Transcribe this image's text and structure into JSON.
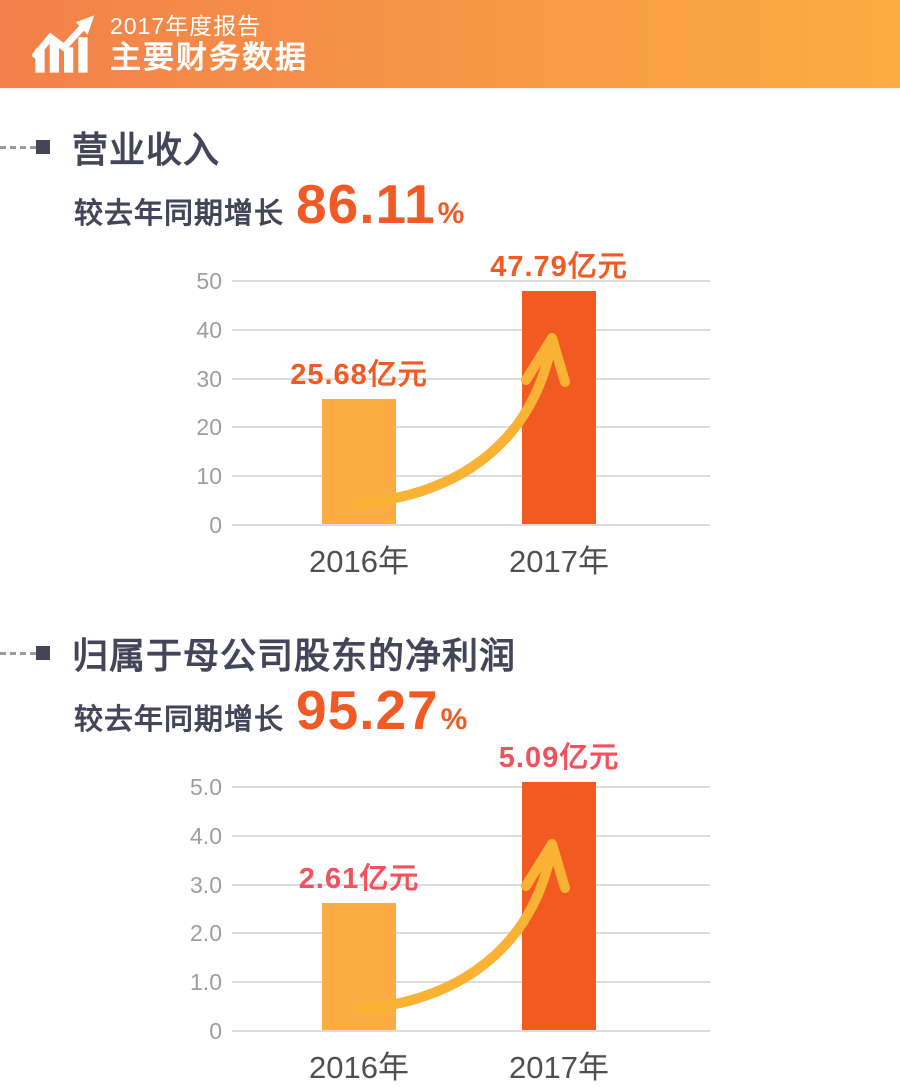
{
  "header": {
    "report_title": "2017年度报告",
    "subtitle": "主要财务数据",
    "icon": "growth-chart-icon",
    "gradient_left": "#F2804A",
    "gradient_right": "#FBAC42"
  },
  "sections": [
    {
      "title": "营业收入",
      "growth_prefix": "较去年同期增长",
      "growth_value": "86.11",
      "growth_unit": "%",
      "accent_color": "#F15A24"
    },
    {
      "title": "归属于母公司股东的净利润",
      "growth_prefix": "较去年同期增长",
      "growth_value": "95.27",
      "growth_unit": "%",
      "accent_color": "#F15A24"
    }
  ],
  "chart_data": [
    {
      "type": "bar",
      "title": "营业收入",
      "categories": [
        "2016年",
        "2017年"
      ],
      "values": [
        25.68,
        47.79
      ],
      "value_labels": [
        "25.68亿元",
        "47.79亿元"
      ],
      "unit": "亿元",
      "ylim": [
        0,
        50
      ],
      "yticks": [
        "0",
        "10",
        "20",
        "30",
        "40",
        "50"
      ],
      "grid": true,
      "legend": false,
      "bar_colors": [
        "#FBAD43",
        "#F15B22"
      ],
      "label_color": "#F15A24",
      "arrow_color": "#F9B233",
      "tick_color": "#9E9E9E",
      "grid_color": "#DCDCDC"
    },
    {
      "type": "bar",
      "title": "归属于母公司股东的净利润",
      "categories": [
        "2016年",
        "2017年"
      ],
      "values": [
        2.61,
        5.09
      ],
      "value_labels": [
        "2.61亿元",
        "5.09亿元"
      ],
      "unit": "亿元",
      "ylim": [
        0,
        5.0
      ],
      "yticks": [
        "0",
        "1.0",
        "2.0",
        "3.0",
        "4.0",
        "5.0"
      ],
      "grid": true,
      "legend": false,
      "bar_colors": [
        "#FBAD43",
        "#F15B22"
      ],
      "label_color": "#F4515C",
      "arrow_color": "#F9B233",
      "tick_color": "#9E9E9E",
      "grid_color": "#DCDCDC"
    }
  ]
}
